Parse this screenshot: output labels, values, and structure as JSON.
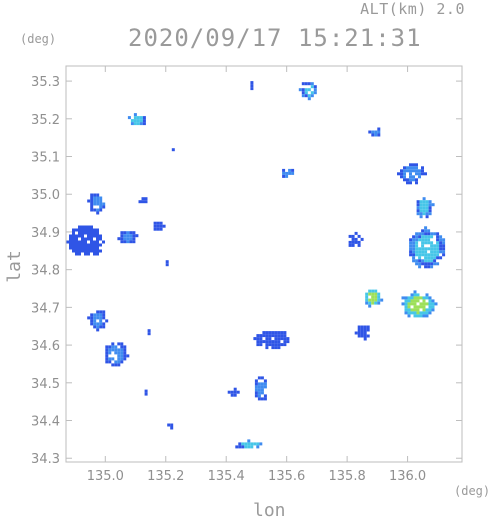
{
  "header": {
    "alt_label": "ALT(km) 2.0",
    "timestamp": "2020/09/17 15:21:31"
  },
  "chart_data": {
    "type": "heatmap",
    "xlabel": "lon",
    "ylabel": "lat",
    "x_unit": "(deg)",
    "y_unit": "(deg)",
    "xlim": [
      134.87,
      136.18
    ],
    "ylim": [
      34.29,
      35.34
    ],
    "x_ticks": [
      "135.0",
      "135.2",
      "135.4",
      "135.6",
      "135.8",
      "136.0"
    ],
    "y_ticks": [
      "34.3",
      "34.4",
      "34.5",
      "34.6",
      "34.7",
      "34.8",
      "34.9",
      "35.0",
      "35.1",
      "35.2",
      "35.3"
    ],
    "grid": false,
    "colors": {
      "low": "#2f55e6",
      "mid": "#3f8cf0",
      "high": "#46c6e8",
      "peak": "#9de05a"
    },
    "echoes": [
      {
        "lon": 134.93,
        "lat": 34.88,
        "w": 0.12,
        "h": 0.09,
        "level": "low"
      },
      {
        "lon": 134.97,
        "lat": 34.98,
        "w": 0.06,
        "h": 0.06,
        "level": "mid"
      },
      {
        "lon": 135.07,
        "lat": 34.89,
        "w": 0.06,
        "h": 0.04,
        "level": "mid"
      },
      {
        "lon": 135.03,
        "lat": 34.58,
        "w": 0.08,
        "h": 0.07,
        "level": "mid"
      },
      {
        "lon": 134.97,
        "lat": 34.67,
        "w": 0.06,
        "h": 0.06,
        "level": "mid"
      },
      {
        "lon": 135.1,
        "lat": 35.2,
        "w": 0.07,
        "h": 0.03,
        "level": "high"
      },
      {
        "lon": 135.12,
        "lat": 34.99,
        "w": 0.04,
        "h": 0.02,
        "level": "low"
      },
      {
        "lon": 135.17,
        "lat": 34.92,
        "w": 0.04,
        "h": 0.03,
        "level": "low"
      },
      {
        "lon": 135.2,
        "lat": 34.82,
        "w": 0.02,
        "h": 0.01,
        "level": "low"
      },
      {
        "lon": 135.22,
        "lat": 35.12,
        "w": 0.02,
        "h": 0.02,
        "level": "low"
      },
      {
        "lon": 135.21,
        "lat": 34.39,
        "w": 0.03,
        "h": 0.02,
        "level": "low"
      },
      {
        "lon": 135.48,
        "lat": 35.29,
        "w": 0.02,
        "h": 0.02,
        "level": "low"
      },
      {
        "lon": 135.67,
        "lat": 35.28,
        "w": 0.06,
        "h": 0.05,
        "level": "high"
      },
      {
        "lon": 135.6,
        "lat": 35.06,
        "w": 0.05,
        "h": 0.03,
        "level": "mid"
      },
      {
        "lon": 135.89,
        "lat": 35.17,
        "w": 0.04,
        "h": 0.03,
        "level": "mid"
      },
      {
        "lon": 136.01,
        "lat": 35.06,
        "w": 0.09,
        "h": 0.06,
        "level": "mid"
      },
      {
        "lon": 136.05,
        "lat": 34.97,
        "w": 0.06,
        "h": 0.06,
        "level": "high"
      },
      {
        "lon": 135.82,
        "lat": 34.88,
        "w": 0.05,
        "h": 0.04,
        "level": "low"
      },
      {
        "lon": 136.06,
        "lat": 34.86,
        "w": 0.13,
        "h": 0.11,
        "level": "high"
      },
      {
        "lon": 136.03,
        "lat": 34.71,
        "w": 0.12,
        "h": 0.07,
        "level": "peak"
      },
      {
        "lon": 135.88,
        "lat": 34.73,
        "w": 0.06,
        "h": 0.05,
        "level": "peak"
      },
      {
        "lon": 135.85,
        "lat": 34.64,
        "w": 0.05,
        "h": 0.04,
        "level": "low"
      },
      {
        "lon": 135.55,
        "lat": 34.62,
        "w": 0.12,
        "h": 0.05,
        "level": "low"
      },
      {
        "lon": 135.51,
        "lat": 34.49,
        "w": 0.05,
        "h": 0.07,
        "level": "mid"
      },
      {
        "lon": 135.42,
        "lat": 34.48,
        "w": 0.03,
        "h": 0.03,
        "level": "low"
      },
      {
        "lon": 135.47,
        "lat": 34.34,
        "w": 0.1,
        "h": 0.02,
        "level": "high"
      },
      {
        "lon": 135.13,
        "lat": 34.48,
        "w": 0.02,
        "h": 0.02,
        "level": "low"
      },
      {
        "lon": 135.14,
        "lat": 34.64,
        "w": 0.02,
        "h": 0.02,
        "level": "low"
      }
    ]
  }
}
